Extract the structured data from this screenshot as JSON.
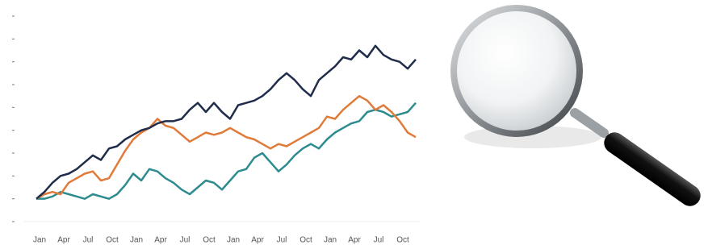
{
  "chart_data": {
    "type": "line",
    "categories": [
      "Jan",
      null,
      null,
      "Apr",
      null,
      null,
      "Jul",
      null,
      null,
      "Oct",
      null,
      null,
      "Jan",
      null,
      null,
      "Apr",
      null,
      null,
      "Jul",
      null,
      null,
      "Oct",
      null,
      null,
      "Jan",
      null,
      null,
      "Apr",
      null,
      null,
      "Jul",
      null,
      null,
      "Oct",
      null,
      null,
      "Jan",
      null,
      null,
      "Apr",
      null,
      null,
      "Jul",
      null,
      null,
      "Oct",
      null,
      null
    ],
    "series": [
      {
        "color": "#1f2d4a",
        "values": [
          1.0,
          1.3,
          1.7,
          2.0,
          2.1,
          2.3,
          2.6,
          2.9,
          2.7,
          3.2,
          3.3,
          3.6,
          3.8,
          4.0,
          4.1,
          4.3,
          4.4,
          4.4,
          4.5,
          4.9,
          5.2,
          4.8,
          5.2,
          4.8,
          4.5,
          5.1,
          5.2,
          5.3,
          5.5,
          5.8,
          6.2,
          6.5,
          6.2,
          5.8,
          5.5,
          6.2,
          6.5,
          6.8,
          7.2,
          7.1,
          7.5,
          7.2,
          7.7,
          7.3,
          7.1,
          7.0,
          6.7,
          7.1
        ]
      },
      {
        "color": "#e07b39",
        "values": [
          1.0,
          1.2,
          1.3,
          1.2,
          1.7,
          1.9,
          2.1,
          2.2,
          1.8,
          1.9,
          2.5,
          3.1,
          3.6,
          3.9,
          4.1,
          4.5,
          4.2,
          4.1,
          3.8,
          3.5,
          3.7,
          3.9,
          3.8,
          3.9,
          4.1,
          3.9,
          3.7,
          3.6,
          3.4,
          3.2,
          3.4,
          3.3,
          3.5,
          3.7,
          3.9,
          4.1,
          4.6,
          4.5,
          4.9,
          5.2,
          5.5,
          5.3,
          4.9,
          5.1,
          4.8,
          4.4,
          3.9,
          3.7
        ]
      },
      {
        "color": "#2e8b8f",
        "values": [
          1.0,
          1.0,
          1.1,
          1.3,
          1.2,
          1.1,
          1.0,
          1.2,
          1.1,
          1.0,
          1.2,
          1.6,
          2.1,
          1.8,
          2.3,
          2.2,
          1.9,
          1.7,
          1.4,
          1.2,
          1.5,
          1.8,
          1.7,
          1.4,
          1.8,
          2.2,
          2.3,
          2.8,
          3.0,
          2.6,
          2.2,
          2.5,
          2.9,
          3.2,
          3.4,
          3.2,
          3.6,
          3.9,
          4.1,
          4.3,
          4.4,
          4.8,
          4.9,
          4.8,
          4.6,
          4.7,
          4.8,
          5.2
        ]
      }
    ],
    "ylim": [
      0,
      9
    ],
    "yticks": [
      0,
      1,
      2,
      3,
      4,
      5,
      6,
      7,
      8,
      9
    ]
  }
}
